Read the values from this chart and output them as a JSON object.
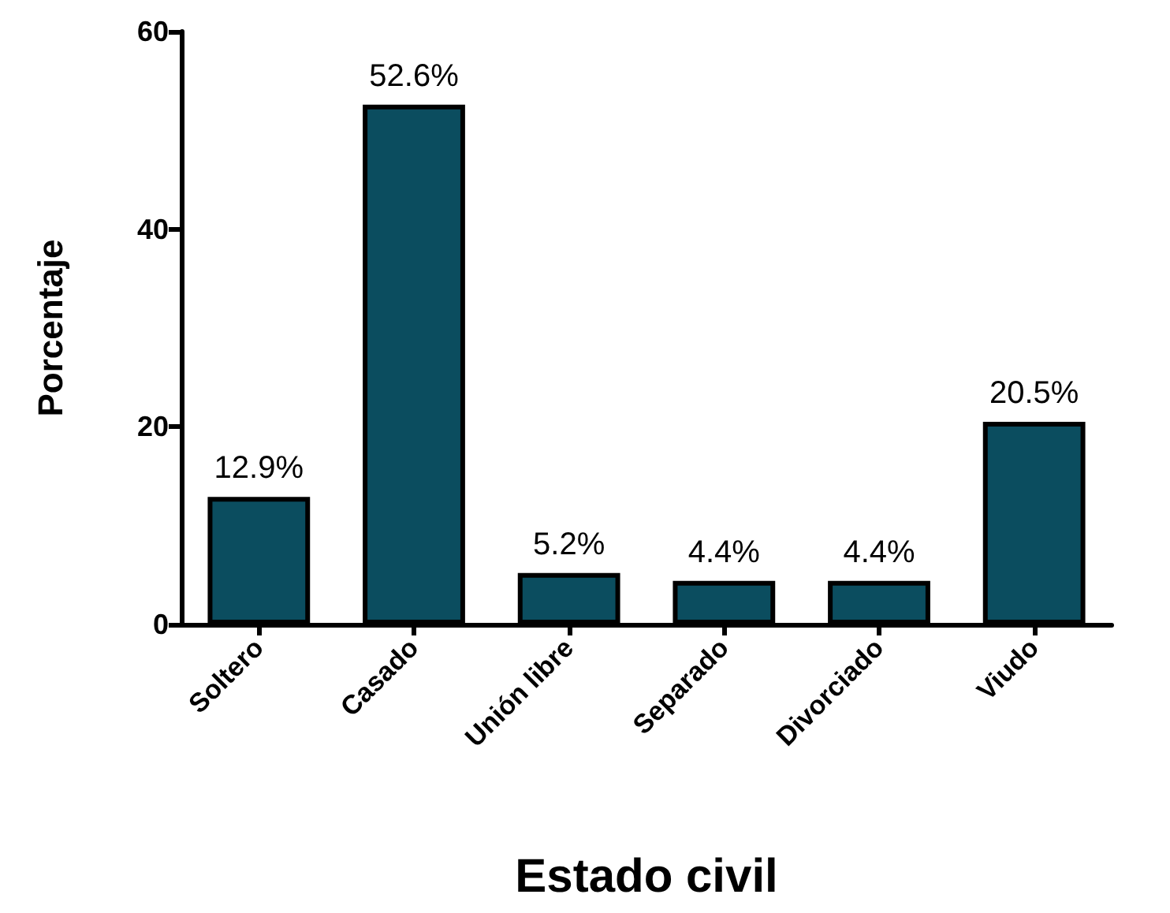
{
  "chart_data": {
    "type": "bar",
    "xlabel": "Estado civil",
    "ylabel": "Porcentaje",
    "categories": [
      "Soltero",
      "Casado",
      "Unión libre",
      "Separado",
      "Divorciado",
      "Viudo"
    ],
    "values": [
      12.9,
      52.6,
      5.2,
      4.4,
      4.4,
      20.5
    ],
    "value_labels": [
      "12.9%",
      "52.6%",
      "5.2%",
      "4.4%",
      "4.4%",
      "20.5%"
    ],
    "color": "#0b4d5f",
    "ylim": [
      0,
      60
    ],
    "yticks": [
      0,
      20,
      40,
      60
    ],
    "grid": false
  }
}
